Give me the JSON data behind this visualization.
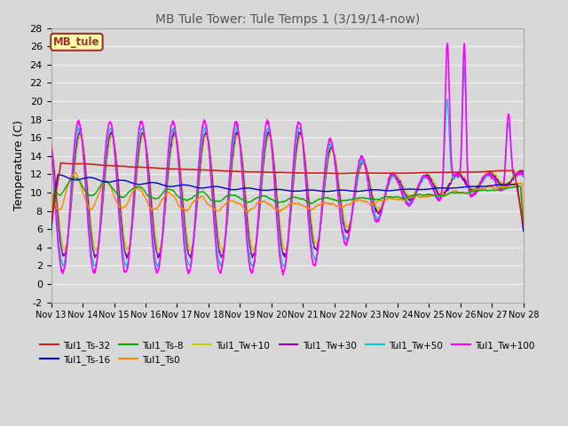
{
  "title": "MB Tule Tower: Tule Temps 1 (3/19/14-now)",
  "ylabel": "Temperature (C)",
  "ylim": [
    -2,
    28
  ],
  "yticks": [
    -2,
    0,
    2,
    4,
    6,
    8,
    10,
    12,
    14,
    16,
    18,
    20,
    22,
    24,
    26,
    28
  ],
  "xtick_labels": [
    "Nov 13",
    "Nov 14",
    "Nov 15",
    "Nov 16",
    "Nov 17",
    "Nov 18",
    "Nov 19",
    "Nov 20",
    "Nov 21",
    "Nov 22",
    "Nov 23",
    "Nov 24",
    "Nov 25",
    "Nov 26",
    "Nov 27",
    "Nov 28"
  ],
  "bg_color": "#d8d8d8",
  "grid_color": "#f0f0f0",
  "legend_box_facecolor": "#ffffaa",
  "legend_box_edgecolor": "#993333",
  "legend_label": "MB_tule",
  "colors": {
    "Ts32": "#cc2222",
    "Ts16": "#0000cc",
    "Ts8": "#00aa00",
    "Ts0": "#ff8800",
    "Tw10": "#cccc00",
    "Tw30": "#9900aa",
    "Tw50": "#00cccc",
    "Tw100": "#ff00ff"
  },
  "labels": {
    "Ts32": "Tul1_Ts-32",
    "Ts16": "Tul1_Ts-16",
    "Ts8": "Tul1_Ts-8",
    "Ts0": "Tul1_Ts0",
    "Tw10": "Tul1_Tw+10",
    "Tw30": "Tul1_Tw+30",
    "Tw50": "Tul1_Tw+50",
    "Tw100": "Tul1_Tw+100"
  }
}
